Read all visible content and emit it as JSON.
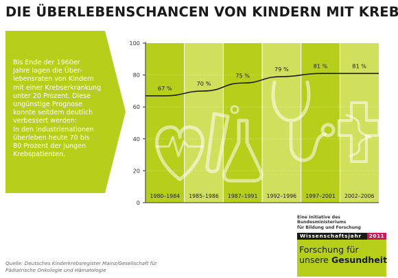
{
  "title": "DIE ÜBERLEBENSCHANCEN VON KINDERN MIT KREBS",
  "intro_text": "Bis Ende der 1960er\nJahre lagen die Über-\nlebensraten von Kindern\nmit einer Krebserkrankung\nunter 20 Prozent. Diese\nungünstige Prognose\nkonnte seitdem deutlich\nverbessert werden:\nIn den Industrienationen\nüberleben heute 70 bis\n80 Prozent der jungen\nKrebspatienten.",
  "source": "Quelle: Deutsches Kinderkrebsregister Mainz/Gesellschaft für\nPädiatrische Onkologie und Hämatologie",
  "logo": {
    "ministry": "Eine Initiative des Bundesministeriums\nfür Bildung und Forschung",
    "bar_text": "Wissenschaftsjahr",
    "year": "2011",
    "line1_regular": "Forschung ",
    "line1_light": "für",
    "line2_regular": "unsere ",
    "line2_bold": "Gesundheit"
  },
  "colors": {
    "green": "#b5cf1b",
    "green_light": "#cfe05c",
    "band_text": "#1a1a1a",
    "accent": "#d4145a"
  },
  "chart_data": {
    "type": "line",
    "title": "",
    "xlabel": "",
    "ylabel": "",
    "ylim": [
      0,
      100
    ],
    "yticks": [
      0,
      20,
      40,
      60,
      80,
      100
    ],
    "grid": true,
    "categories": [
      "1980–1984",
      "1985–1986",
      "1987–1991",
      "1992–1996",
      "1997–2001",
      "2002–2006"
    ],
    "series": [
      {
        "values": [
          67,
          70,
          75,
          79,
          81,
          81
        ]
      }
    ],
    "value_labels": [
      "67 %",
      "70 %",
      "75 %",
      "79 %",
      "81 %",
      "81 %"
    ],
    "background_icons": [
      "heart-icon",
      "flask-icon",
      "stethoscope-icon",
      "caduceus-icon"
    ]
  }
}
